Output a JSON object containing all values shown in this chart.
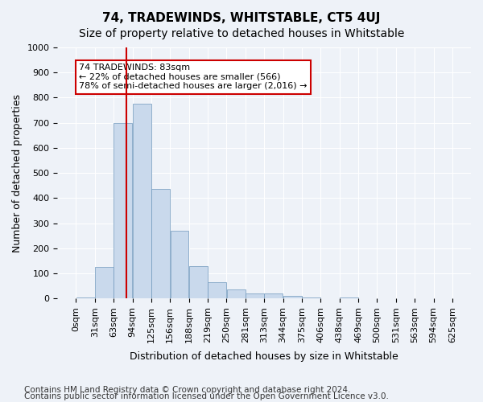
{
  "title": "74, TRADEWINDS, WHITSTABLE, CT5 4UJ",
  "subtitle": "Size of property relative to detached houses in Whitstable",
  "xlabel": "Distribution of detached houses by size in Whitstable",
  "ylabel": "Number of detached properties",
  "bins": [
    "0sqm",
    "31sqm",
    "63sqm",
    "94sqm",
    "125sqm",
    "156sqm",
    "188sqm",
    "219sqm",
    "250sqm",
    "281sqm",
    "313sqm",
    "344sqm",
    "375sqm",
    "406sqm",
    "438sqm",
    "469sqm",
    "500sqm",
    "531sqm",
    "563sqm",
    "594sqm",
    "625sqm"
  ],
  "values": [
    5,
    125,
    700,
    775,
    435,
    270,
    130,
    65,
    37,
    20,
    20,
    10,
    5,
    0,
    5,
    0,
    0,
    0,
    0,
    0
  ],
  "bar_color": "#c9d9ec",
  "bar_edge_color": "#7098bc",
  "property_line_x": 83,
  "bin_width": 31,
  "annotation_text": "74 TRADEWINDS: 83sqm\n← 22% of detached houses are smaller (566)\n78% of semi-detached houses are larger (2,016) →",
  "annotation_box_color": "#ffffff",
  "annotation_box_edge_color": "#cc0000",
  "ylim": [
    0,
    1000
  ],
  "yticks": [
    0,
    100,
    200,
    300,
    400,
    500,
    600,
    700,
    800,
    900,
    1000
  ],
  "footer_line1": "Contains HM Land Registry data © Crown copyright and database right 2024.",
  "footer_line2": "Contains public sector information licensed under the Open Government Licence v3.0.",
  "bg_color": "#eef2f8",
  "plot_bg_color": "#eef2f8",
  "grid_color": "#ffffff",
  "title_fontsize": 11,
  "subtitle_fontsize": 10,
  "axis_label_fontsize": 9,
  "tick_fontsize": 8,
  "footer_fontsize": 7.5
}
